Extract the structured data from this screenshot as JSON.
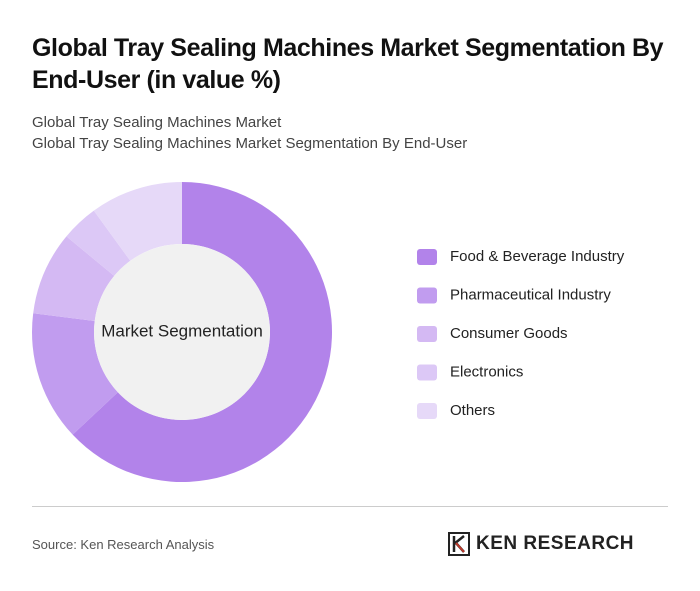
{
  "chart_data": {
    "type": "donut",
    "title": "Global Tray Sealing Machines Market Segmentation By End-User (in value %)",
    "subtitle": "Global Tray Sealing Machines Market",
    "subtitle2": "Global Tray Sealing Machines Market Segmentation By End-User",
    "center_label": "Market Segmentation",
    "categories": [
      "Food & Beverage Industry",
      "Pharmaceutical Industry",
      "Consumer Goods",
      "Electronics",
      "Others"
    ],
    "values": [
      63,
      14,
      9,
      4,
      10
    ],
    "colors": [
      "#b283ea",
      "#c19cef",
      "#d4b9f3",
      "#dcc8f6",
      "#e6d9f8"
    ]
  },
  "source": "Source: Ken Research Analysis",
  "logo": "KEN RESEARCH"
}
